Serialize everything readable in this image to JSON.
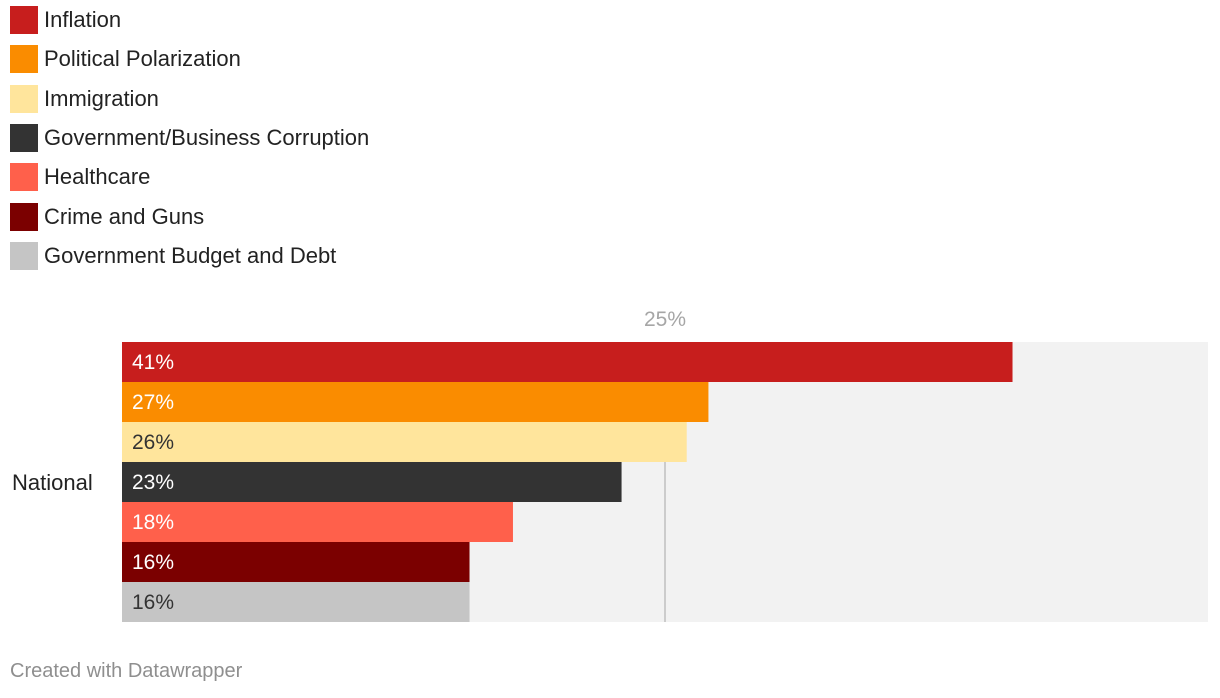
{
  "chart_data": {
    "type": "bar",
    "orientation": "horizontal",
    "categories": [
      "National"
    ],
    "series": [
      {
        "name": "Inflation",
        "values": [
          41
        ],
        "color": "#c71e1d",
        "label_color": "#ffffff"
      },
      {
        "name": "Political Polarization",
        "values": [
          27
        ],
        "color": "#fa8c00",
        "label_color": "#ffffff"
      },
      {
        "name": "Immigration",
        "values": [
          26
        ],
        "color": "#ffe59c",
        "label_color": "#333333"
      },
      {
        "name": "Government/Business Corruption",
        "values": [
          23
        ],
        "color": "#333333",
        "label_color": "#ffffff"
      },
      {
        "name": "Healthcare",
        "values": [
          18
        ],
        "color": "#ff604b",
        "label_color": "#ffffff"
      },
      {
        "name": "Crime and Guns",
        "values": [
          16
        ],
        "color": "#7b0000",
        "label_color": "#ffffff"
      },
      {
        "name": "Government Budget and Debt",
        "values": [
          16
        ],
        "color": "#c5c5c5",
        "label_color": "#333333"
      }
    ],
    "value_suffix": "%",
    "xlim": [
      0,
      50
    ],
    "reference_line": {
      "value": 25,
      "label": "25%"
    },
    "legend_position": "top-left",
    "background_color": "#f2f2f2",
    "grid": false
  },
  "footer": {
    "text": "Created with Datawrapper"
  }
}
